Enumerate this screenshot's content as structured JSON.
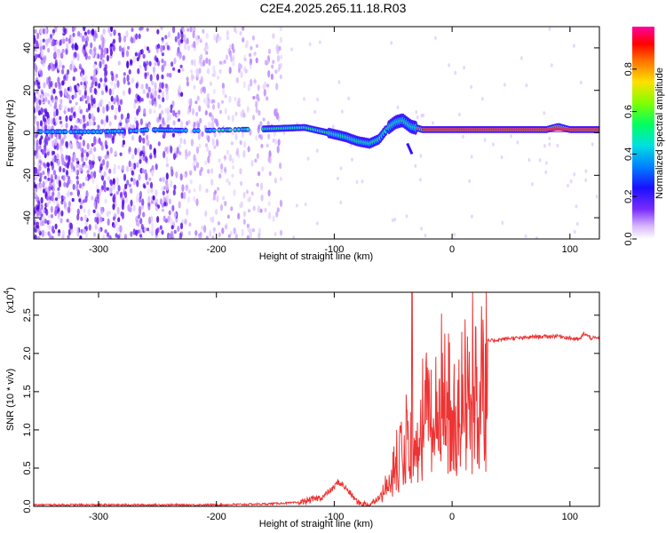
{
  "title": "C2E4.2025.265.11.18.R03",
  "chart_data": [
    {
      "type": "heatmap",
      "name": "spectrogram",
      "xlabel": "Height of straight line (km)",
      "ylabel": "Frequency (Hz)",
      "xlim": [
        -355,
        125
      ],
      "ylim": [
        -50,
        50
      ],
      "xticks": [
        -300,
        -200,
        -100,
        0,
        100
      ],
      "xtick_labels": [
        "-300",
        "-200",
        "-100",
        "0",
        "100"
      ],
      "yticks": [
        -40,
        -20,
        0,
        20,
        40
      ],
      "ytick_labels": [
        "-40",
        "-20",
        "0",
        "20",
        "40"
      ],
      "ridge": {
        "x": [
          -355,
          -300,
          -265,
          -258,
          -220,
          -180,
          -150,
          -125,
          -105,
          -90,
          -80,
          -70,
          -62,
          -55,
          -48,
          -42,
          -35,
          -25,
          0,
          50,
          80,
          90,
          100,
          125
        ],
        "y": [
          0.5,
          0.5,
          1,
          1.5,
          1,
          1.5,
          2,
          2.5,
          0,
          -2,
          -4,
          -5,
          -3,
          2,
          5,
          6,
          3,
          1.5,
          1.5,
          1.5,
          1.5,
          3,
          1.5,
          1.5
        ]
      },
      "colorbar": {
        "label": "Normalized spectral amplitude",
        "range": [
          0,
          1
        ],
        "ticks": [
          0.0,
          0.2,
          0.4,
          0.6,
          0.8
        ],
        "tick_labels": [
          "0.0",
          "0.2",
          "0.4",
          "0.6",
          "0.8"
        ],
        "colors": [
          "#ffffff",
          "#9a4dff",
          "#2a00ff",
          "#00a0ff",
          "#00ffc0",
          "#30ff00",
          "#ffff00",
          "#ff8000",
          "#ff0000",
          "#ff00a0"
        ]
      }
    },
    {
      "type": "line",
      "name": "snr",
      "xlabel": "Height of straight line (km)",
      "ylabel": "SNR (10 * v/v)",
      "y_scale_label": "(x10",
      "y_scale_exp": "4",
      "y_scale_close": ")",
      "xlim": [
        -355,
        125
      ],
      "ylim": [
        0,
        2.8
      ],
      "xticks": [
        -300,
        -200,
        -100,
        0,
        100
      ],
      "xtick_labels": [
        "-300",
        "-200",
        "-100",
        "0",
        "100"
      ],
      "yticks": [
        0.0,
        0.5,
        1.0,
        1.5,
        2.0,
        2.5
      ],
      "ytick_labels": [
        "0.0",
        "0.5",
        "1.0",
        "1.5",
        "2.0",
        "2.5"
      ],
      "color": "#ee3333",
      "series": [
        {
          "name": "SNR",
          "x": [
            -355,
            -300,
            -250,
            -200,
            -160,
            -130,
            -110,
            -100,
            -97,
            -93,
            -88,
            -80,
            -70,
            -60,
            -52,
            -45,
            -40,
            -35,
            -30,
            -25,
            -20,
            -15,
            -10,
            -5,
            0,
            5,
            10,
            15,
            20,
            25,
            30,
            40,
            50,
            60,
            70,
            80,
            90,
            100,
            108,
            112,
            118,
            125
          ],
          "y": [
            0.02,
            0.02,
            0.02,
            0.02,
            0.03,
            0.05,
            0.12,
            0.25,
            0.32,
            0.28,
            0.2,
            0.05,
            0.02,
            0.15,
            0.5,
            0.8,
            1.0,
            1.2,
            1.25,
            1.35,
            1.45,
            1.5,
            1.55,
            1.6,
            1.65,
            1.75,
            1.85,
            1.95,
            2.05,
            2.12,
            2.16,
            2.18,
            2.2,
            2.2,
            2.22,
            2.22,
            2.23,
            2.2,
            2.18,
            2.26,
            2.2,
            2.2
          ]
        }
      ],
      "spikes": [
        {
          "x": -34,
          "y": 2.8
        },
        {
          "x": -9,
          "y": 2.52
        },
        {
          "x": -44,
          "y": 1.05
        },
        {
          "x": -47,
          "y": 1.0
        }
      ]
    }
  ]
}
